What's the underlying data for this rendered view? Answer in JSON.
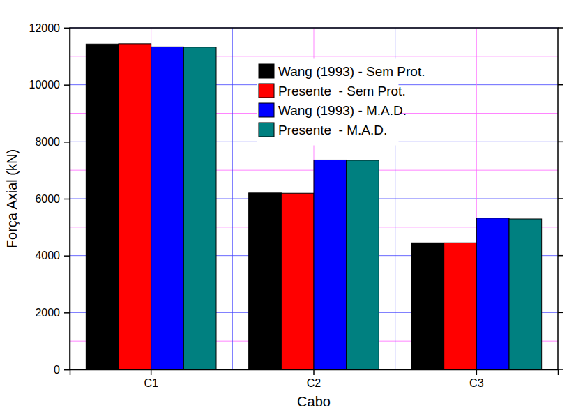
{
  "chart_data": {
    "type": "bar",
    "x_label": "Cabo",
    "y_label": "Força Axial (kN)",
    "categories": [
      "C1",
      "C2",
      "C3"
    ],
    "series": [
      {
        "name": "Wang (1993) - Sem Prot.",
        "color": "#000000",
        "values": [
          11430,
          6200,
          4450
        ]
      },
      {
        "name": "Presente  - Sem Prot.",
        "color": "#ff0000",
        "values": [
          11440,
          6190,
          4450
        ]
      },
      {
        "name": "Wang (1993) - M.A.D.",
        "color": "#0000ff",
        "values": [
          11330,
          7360,
          5320
        ]
      },
      {
        "name": "Presente  - M.A.D.",
        "color": "#008080",
        "values": [
          11320,
          7350,
          5290
        ]
      }
    ],
    "ylim": [
      0,
      12000
    ],
    "yticks": [
      0,
      2000,
      4000,
      6000,
      8000,
      10000,
      12000
    ],
    "grid": true,
    "legend": "top"
  }
}
